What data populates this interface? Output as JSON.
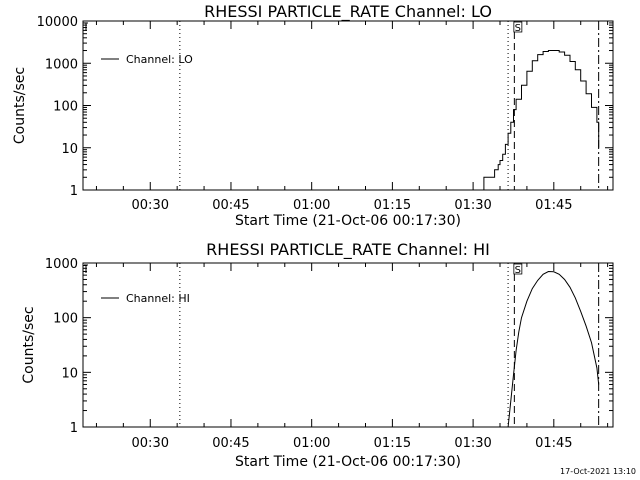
{
  "footer": {
    "timestamp": "17-Oct-2021 13:10"
  },
  "chart_data": [
    {
      "type": "line",
      "title": "RHESSI PARTICLE_RATE Channel: LO",
      "xlabel": "Start Time (21-Oct-06 00:17:30)",
      "ylabel": "Counts/sec",
      "y_scale": "log",
      "xlim": [
        "00:17:30",
        "01:56:00"
      ],
      "ylim": [
        1,
        10000
      ],
      "x_ticks": [
        "00:30",
        "00:45",
        "01:00",
        "01:15",
        "01:30",
        "01:45"
      ],
      "y_ticks": [
        "1",
        "10",
        "100",
        "1000",
        "10000"
      ],
      "legend": {
        "position": "top-left",
        "entries": [
          "Channel: LO"
        ]
      },
      "flag_label": "S",
      "vlines": [
        {
          "x": "00:35:30",
          "style": "dotted"
        },
        {
          "x": "01:36:30",
          "style": "dotted"
        },
        {
          "x": "01:37:40",
          "style": "dashed"
        },
        {
          "x": "01:53:20",
          "style": "dashdot"
        }
      ],
      "series": [
        {
          "name": "Channel: LO",
          "step": true,
          "x": [
            "01:31:00",
            "01:32:00",
            "01:33:00",
            "01:34:00",
            "01:34:40",
            "01:35:00",
            "01:35:30",
            "01:36:00",
            "01:36:30",
            "01:37:00",
            "01:37:30",
            "01:38:00",
            "01:39:00",
            "01:40:00",
            "01:41:00",
            "01:42:00",
            "01:43:00",
            "01:44:00",
            "01:45:00",
            "01:46:00",
            "01:47:00",
            "01:48:00",
            "01:49:00",
            "01:50:00",
            "01:51:00",
            "01:52:00",
            "01:53:00",
            "01:53:20"
          ],
          "values": [
            1,
            2,
            2,
            3,
            4,
            5,
            7,
            12,
            22,
            40,
            80,
            140,
            300,
            650,
            1150,
            1600,
            1900,
            2000,
            2000,
            1850,
            1550,
            1100,
            700,
            380,
            190,
            90,
            40,
            10
          ]
        }
      ]
    },
    {
      "type": "line",
      "title": "RHESSI PARTICLE_RATE Channel: HI",
      "xlabel": "Start Time (21-Oct-06 00:17:30)",
      "ylabel": "Counts/sec",
      "y_scale": "log",
      "xlim": [
        "00:17:30",
        "01:56:00"
      ],
      "ylim": [
        1,
        1000
      ],
      "x_ticks": [
        "00:30",
        "00:45",
        "01:00",
        "01:15",
        "01:30",
        "01:45"
      ],
      "y_ticks": [
        "1",
        "10",
        "100",
        "1000"
      ],
      "legend": {
        "position": "top-left",
        "entries": [
          "Channel: HI"
        ]
      },
      "flag_label": "S",
      "vlines": [
        {
          "x": "00:35:30",
          "style": "dotted"
        },
        {
          "x": "01:36:30",
          "style": "dotted"
        },
        {
          "x": "01:37:40",
          "style": "dashed"
        },
        {
          "x": "01:53:20",
          "style": "dashdot"
        }
      ],
      "series": [
        {
          "name": "Channel: HI",
          "step": false,
          "x": [
            "01:36:30",
            "01:37:00",
            "01:37:30",
            "01:38:00",
            "01:38:30",
            "01:39:00",
            "01:40:00",
            "01:41:00",
            "01:42:00",
            "01:43:00",
            "01:44:00",
            "01:45:00",
            "01:46:00",
            "01:47:00",
            "01:48:00",
            "01:49:00",
            "01:50:00",
            "01:51:00",
            "01:52:00",
            "01:53:00",
            "01:53:20"
          ],
          "values": [
            1,
            3,
            9,
            25,
            55,
            100,
            200,
            340,
            480,
            620,
            700,
            690,
            620,
            500,
            360,
            230,
            130,
            70,
            35,
            12,
            6
          ]
        }
      ]
    }
  ]
}
